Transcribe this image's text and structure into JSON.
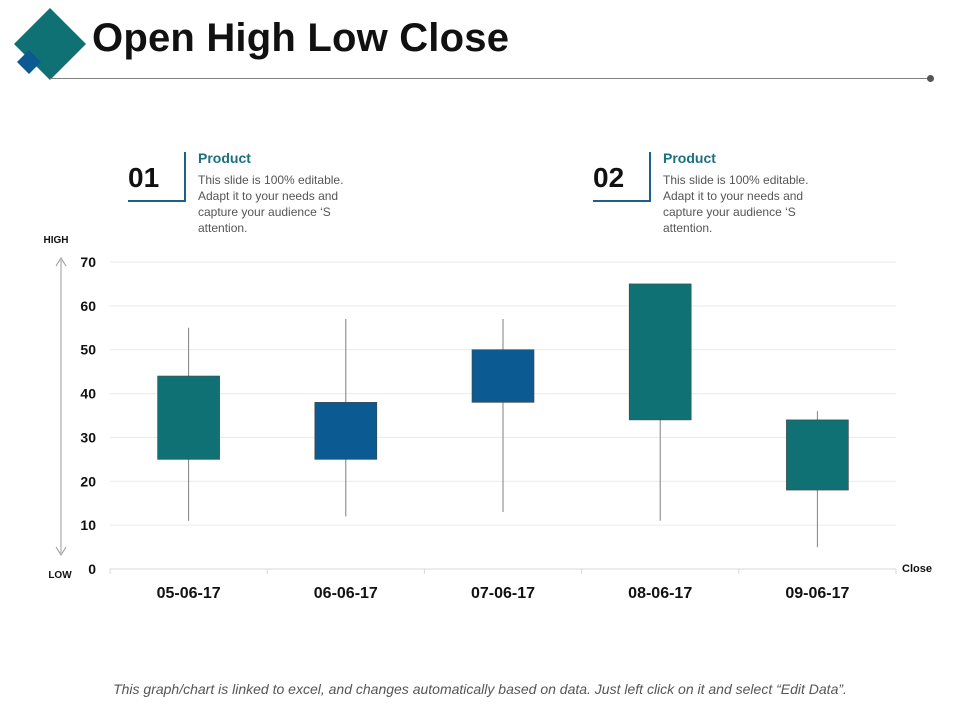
{
  "header": {
    "title": "Open High Low Close"
  },
  "callouts": [
    {
      "number": "01",
      "heading": "Product",
      "body": "This slide is 100% editable. Adapt it to your needs and capture your audience ‘S attention."
    },
    {
      "number": "02",
      "heading": "Product",
      "body": "This slide is 100% editable. Adapt it to your needs and capture your audience ‘S attention."
    }
  ],
  "chart_data": {
    "type": "candlestick",
    "title": "",
    "xlabel": "",
    "ylabel": "",
    "ylim": [
      0,
      70
    ],
    "yticks": [
      0,
      10,
      20,
      30,
      40,
      50,
      60,
      70
    ],
    "categories": [
      "05-06-17",
      "06-06-17",
      "07-06-17",
      "08-06-17",
      "09-06-17"
    ],
    "series": [
      {
        "date": "05-06-17",
        "open": 25,
        "high": 55,
        "low": 11,
        "close": 44,
        "color": "#0f7173"
      },
      {
        "date": "06-06-17",
        "open": 25,
        "high": 57,
        "low": 12,
        "close": 38,
        "color": "#0b5a91"
      },
      {
        "date": "07-06-17",
        "open": 38,
        "high": 57,
        "low": 13,
        "close": 50,
        "color": "#0b5a91"
      },
      {
        "date": "08-06-17",
        "open": 34,
        "high": 65,
        "low": 11,
        "close": 65,
        "color": "#0f7173"
      },
      {
        "date": "09-06-17",
        "open": 18,
        "high": 36,
        "low": 5,
        "close": 34,
        "color": "#0f7173"
      }
    ],
    "axis_labels": {
      "high": "HIGH",
      "low": "LOW",
      "close": "Close"
    },
    "grid": true
  },
  "footer": {
    "note": "This graph/chart is linked to excel, and changes automatically based on data. Just left click on it and select “Edit Data”."
  },
  "colors": {
    "teal": "#0f7173",
    "blue": "#0b5a91",
    "accent_line": "#1f5f8b"
  }
}
